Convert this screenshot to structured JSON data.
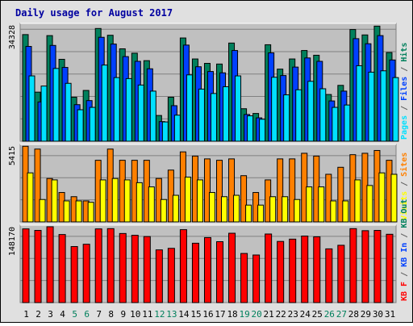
{
  "title": "Daily usage for August 2017",
  "chart_data": {
    "type": "bar",
    "title": "Daily usage for August 2017",
    "categories": [
      "1",
      "2",
      "3",
      "4",
      "5",
      "6",
      "7",
      "8",
      "9",
      "10",
      "11",
      "12",
      "13",
      "14",
      "15",
      "16",
      "17",
      "18",
      "19",
      "20",
      "21",
      "22",
      "23",
      "24",
      "25",
      "26",
      "27",
      "28",
      "29",
      "30",
      "31"
    ],
    "weekend_days": [
      "5",
      "6",
      "12",
      "13",
      "19",
      "20",
      "26",
      "27"
    ],
    "panels": [
      {
        "id": "hits",
        "ymax_label": "34328",
        "ymax": 34328,
        "side_labels": [
          {
            "text": "Pages",
            "color": "#00e0ff"
          },
          {
            "text": " / ",
            "color": "#606060"
          },
          {
            "text": "Files",
            "color": "#0040ff"
          },
          {
            "text": " / ",
            "color": "#606060"
          },
          {
            "text": "Hits",
            "color": "#00805c"
          }
        ],
        "series": [
          {
            "name": "Hits",
            "color": "#00805c",
            "values": [
              31500,
              14500,
              31200,
              24200,
              13000,
              15000,
              33300,
              31300,
              27300,
              26000,
              23800,
              7600,
              13000,
              30500,
              24300,
              23000,
              22800,
              29000,
              9600,
              8200,
              28500,
              21300,
              24300,
              26800,
              25400,
              13800,
              16500,
              33000,
              31400,
              34000,
              26200
            ]
          },
          {
            "name": "Files",
            "color": "#0040ff",
            "values": [
              28000,
              11600,
              28300,
              21800,
              10800,
              12000,
              30700,
              28700,
              25000,
              23600,
              21400,
              5800,
              10500,
              28400,
              22000,
              20600,
              20200,
              26800,
              7900,
              6900,
              26100,
              19400,
              21900,
              24600,
              23600,
              11900,
              14800,
              30300,
              28800,
              31200,
              24000
            ]
          },
          {
            "name": "Pages",
            "color": "#00e0ff",
            "values": [
              19300,
              16300,
              21500,
              17100,
              9300,
              10000,
              22500,
              18800,
              18500,
              16600,
              14800,
              5700,
              7700,
              19600,
              15400,
              14100,
              16100,
              19300,
              7500,
              6500,
              18900,
              13700,
              15200,
              17700,
              15500,
              10000,
              10700,
              22300,
              20400,
              20800,
              18800
            ]
          }
        ]
      },
      {
        "id": "visits",
        "ymax_label": "5415",
        "ymax": 5415,
        "side_labels": [
          {
            "text": "Visits",
            "color": "#ffff00"
          },
          {
            "text": " / ",
            "color": "#606060"
          },
          {
            "text": "Sites",
            "color": "#ff8000"
          }
        ],
        "series": [
          {
            "name": "Sites",
            "color": "#ff8000",
            "values": [
              5400,
              5200,
              3100,
              2100,
              1800,
              1500,
              4400,
              5200,
              4400,
              4400,
              4400,
              3100,
              3700,
              5000,
              4700,
              4500,
              4400,
              4500,
              3300,
              2100,
              3000,
              4500,
              4500,
              4900,
              4700,
              3400,
              3900,
              4800,
              4900,
              5100,
              4400
            ]
          },
          {
            "name": "Visits",
            "color": "#ffff00",
            "values": [
              3500,
              1600,
              3000,
              1500,
              1500,
              1400,
              3000,
              3100,
              3000,
              2800,
              2500,
              1600,
              1900,
              3200,
              3000,
              2100,
              1800,
              1900,
              1200,
              1200,
              1800,
              1800,
              1600,
              2500,
              2500,
              1500,
              1500,
              3000,
              2600,
              3500,
              3400
            ]
          }
        ]
      },
      {
        "id": "kbytes",
        "ymax_label": "148170",
        "ymax": 148170,
        "side_labels": [
          {
            "text": "KB F",
            "color": "#ff0000"
          },
          {
            "text": " / ",
            "color": "#606060"
          },
          {
            "text": "KB In",
            "color": "#0040ff"
          },
          {
            "text": " / ",
            "color": "#606060"
          },
          {
            "text": "KB Out",
            "color": "#00805c"
          }
        ],
        "series": [
          {
            "name": "KB F",
            "color": "#ff0000",
            "values": [
              144000,
              141000,
              148170,
              133000,
              109500,
              114000,
              144000,
              144500,
              135000,
              131500,
              129000,
              103000,
              106000,
              142500,
              116000,
              127000,
              119000,
              135500,
              96000,
              93000,
              134000,
              119500,
              124000,
              130000,
              128500,
              105000,
              112000,
              144500,
              140500,
              141000,
              133500
            ]
          }
        ]
      }
    ]
  }
}
